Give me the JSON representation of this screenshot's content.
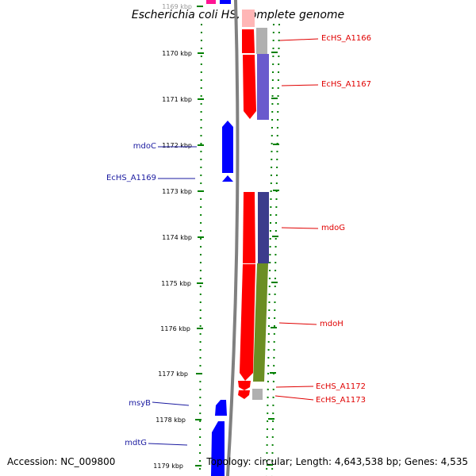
{
  "title": "Escherichia coli HS, complete genome",
  "footer": {
    "accession": "Accession: NC_009800",
    "summary": "Topology: circular; Length: 4,643,538 bp; Genes: 4,535"
  },
  "scale": {
    "unit": "kbp",
    "ticks": [
      "1169 kbp",
      "1170 kbp",
      "1171 kbp",
      "1172 kbp",
      "1173 kbp",
      "1174 kbp",
      "1175 kbp",
      "1176 kbp",
      "1177 kbp",
      "1178 kbp",
      "1179 kbp"
    ]
  },
  "genes_right": [
    {
      "name": "EcHS_A1166",
      "color": "#e00000"
    },
    {
      "name": "EcHS_A1167",
      "color": "#e00000"
    },
    {
      "name": "mdoG",
      "color": "#e00000"
    },
    {
      "name": "mdoH",
      "color": "#e00000"
    },
    {
      "name": "EcHS_A1172",
      "color": "#e00000"
    },
    {
      "name": "EcHS_A1173",
      "color": "#e00000"
    }
  ],
  "genes_left": [
    {
      "name": "mdoC",
      "color": "#1a1aa0"
    },
    {
      "name": "EcHS_A1169",
      "color": "#1a1aa0"
    },
    {
      "name": "msyB",
      "color": "#1a1aa0"
    },
    {
      "name": "mdtG",
      "color": "#1a1aa0"
    }
  ],
  "colors": {
    "forward_gene": "#ff0000",
    "reverse_gene": "#0000ff",
    "backbone": "#808080",
    "tick": "#008000",
    "cog_purple": "#6a5acd",
    "cog_navy": "#3c3c8c",
    "cog_olive": "#6b8e23",
    "cog_grey": "#b0b0b0"
  }
}
